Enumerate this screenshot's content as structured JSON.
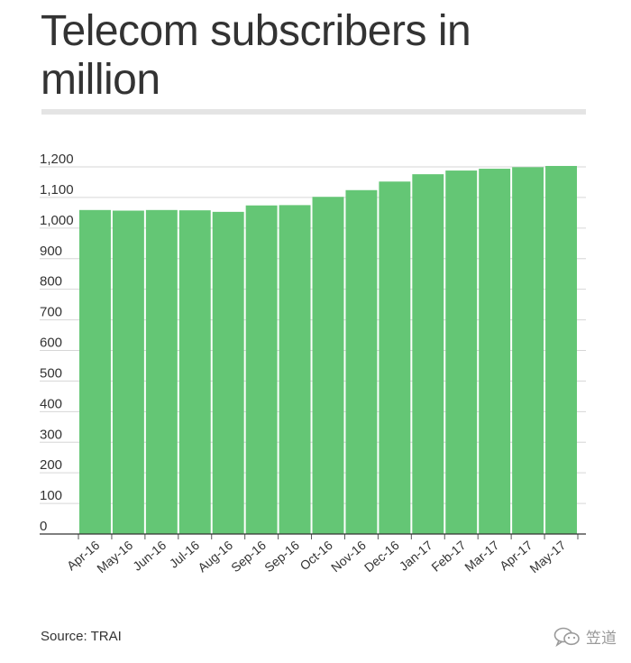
{
  "chart_data": {
    "type": "bar",
    "title": "Telecom subscribers in million",
    "source": "Source: TRAI",
    "categories": [
      "Apr-16",
      "May-16",
      "Jun-16",
      "Jul-16",
      "Aug-16",
      "Sep-16",
      "Sep-16",
      "Oct-16",
      "Nov-16",
      "Dec-16",
      "Jan-17",
      "Feb-17",
      "Mar-17",
      "Apr-17",
      "May-17"
    ],
    "values": [
      1059,
      1057,
      1059,
      1058,
      1053,
      1074,
      1075,
      1102,
      1124,
      1152,
      1176,
      1188,
      1194,
      1199,
      1203
    ],
    "yticks": [
      "0",
      "100",
      "200",
      "300",
      "400",
      "500",
      "600",
      "700",
      "800",
      "900",
      "1,000",
      "1,100",
      "1,200"
    ],
    "ylim": [
      0,
      1200
    ],
    "bar_color": "#64c675",
    "grid": true
  },
  "watermark": {
    "text": "笠道",
    "icon": "wechat-icon"
  }
}
